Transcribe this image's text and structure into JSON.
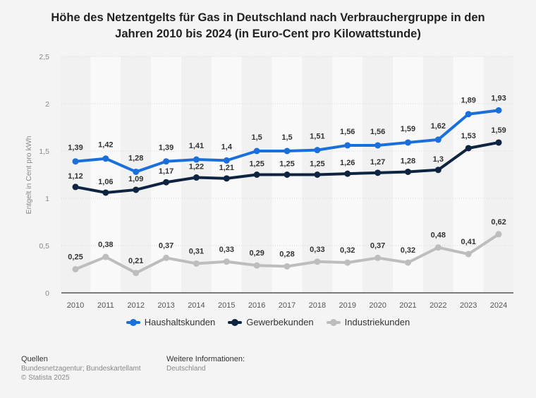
{
  "title_line1": "Höhe des Netzentgelts für Gas in Deutschland nach Verbrauchergruppe in den",
  "title_line2": "Jahren 2010 bis 2024 (in Euro-Cent pro Kilowattstunde)",
  "chart_data": {
    "type": "line",
    "title": "Höhe des Netzentgelts für Gas in Deutschland nach Verbrauchergruppe in den Jahren 2010 bis 2024 (in Euro-Cent pro Kilowattstunde)",
    "xlabel": "",
    "ylabel": "Entgelt in Cent pro kWh",
    "ylim": [
      0,
      2.5
    ],
    "yticks": [
      0,
      0.5,
      1,
      1.5,
      2,
      2.5
    ],
    "ytick_labels": [
      "0",
      "0,5",
      "1",
      "1,5",
      "2",
      "2,5"
    ],
    "grid": true,
    "legend_position": "bottom",
    "categories": [
      "2010",
      "2011",
      "2012",
      "2013",
      "2014",
      "2015",
      "2016",
      "2017",
      "2018",
      "2019",
      "2020",
      "2021",
      "2022",
      "2023",
      "2024"
    ],
    "series": [
      {
        "name": "Haushaltskunden",
        "color": "#1a6fdc",
        "values": [
          1.39,
          1.42,
          1.28,
          1.39,
          1.41,
          1.4,
          1.5,
          1.5,
          1.51,
          1.56,
          1.56,
          1.59,
          1.62,
          1.89,
          1.93
        ],
        "labels": [
          "1,39",
          "1,42",
          "1,28",
          "1,39",
          "1,41",
          "1,4",
          "1,5",
          "1,5",
          "1,51",
          "1,56",
          "1,56",
          "1,59",
          "1,62",
          "1,89",
          "1,93"
        ]
      },
      {
        "name": "Gewerbekunden",
        "color": "#0e2441",
        "values": [
          1.12,
          1.06,
          1.09,
          1.17,
          1.22,
          1.21,
          1.25,
          1.25,
          1.25,
          1.26,
          1.27,
          1.28,
          1.3,
          1.53,
          1.59
        ],
        "labels": [
          "1,12",
          "1,06",
          "1,09",
          "1,17",
          "1,22",
          "1,21",
          "1,25",
          "1,25",
          "1,25",
          "1,26",
          "1,27",
          "1,28",
          "1,3",
          "1,53",
          "1,59"
        ]
      },
      {
        "name": "Industriekunden",
        "color": "#bdbdbd",
        "values": [
          0.25,
          0.38,
          0.21,
          0.37,
          0.31,
          0.33,
          0.29,
          0.28,
          0.33,
          0.32,
          0.37,
          0.32,
          0.48,
          0.41,
          0.62
        ],
        "labels": [
          "0,25",
          "0,38",
          "0,21",
          "0,37",
          "0,31",
          "0,33",
          "0,29",
          "0,28",
          "0,33",
          "0,32",
          "0,37",
          "0,32",
          "0,48",
          "0,41",
          "0,62"
        ]
      }
    ]
  },
  "legend": {
    "items": [
      {
        "label": "Haushaltskunden",
        "color": "#1a6fdc"
      },
      {
        "label": "Gewerbekunden",
        "color": "#0e2441"
      },
      {
        "label": "Industriekunden",
        "color": "#bdbdbd"
      }
    ]
  },
  "footer": {
    "sources_heading": "Quellen",
    "sources_text": "Bundesnetzagentur; Bundeskartellamt",
    "copyright": "© Statista 2025",
    "info_heading": "Weitere Informationen:",
    "info_text": "Deutschland"
  }
}
